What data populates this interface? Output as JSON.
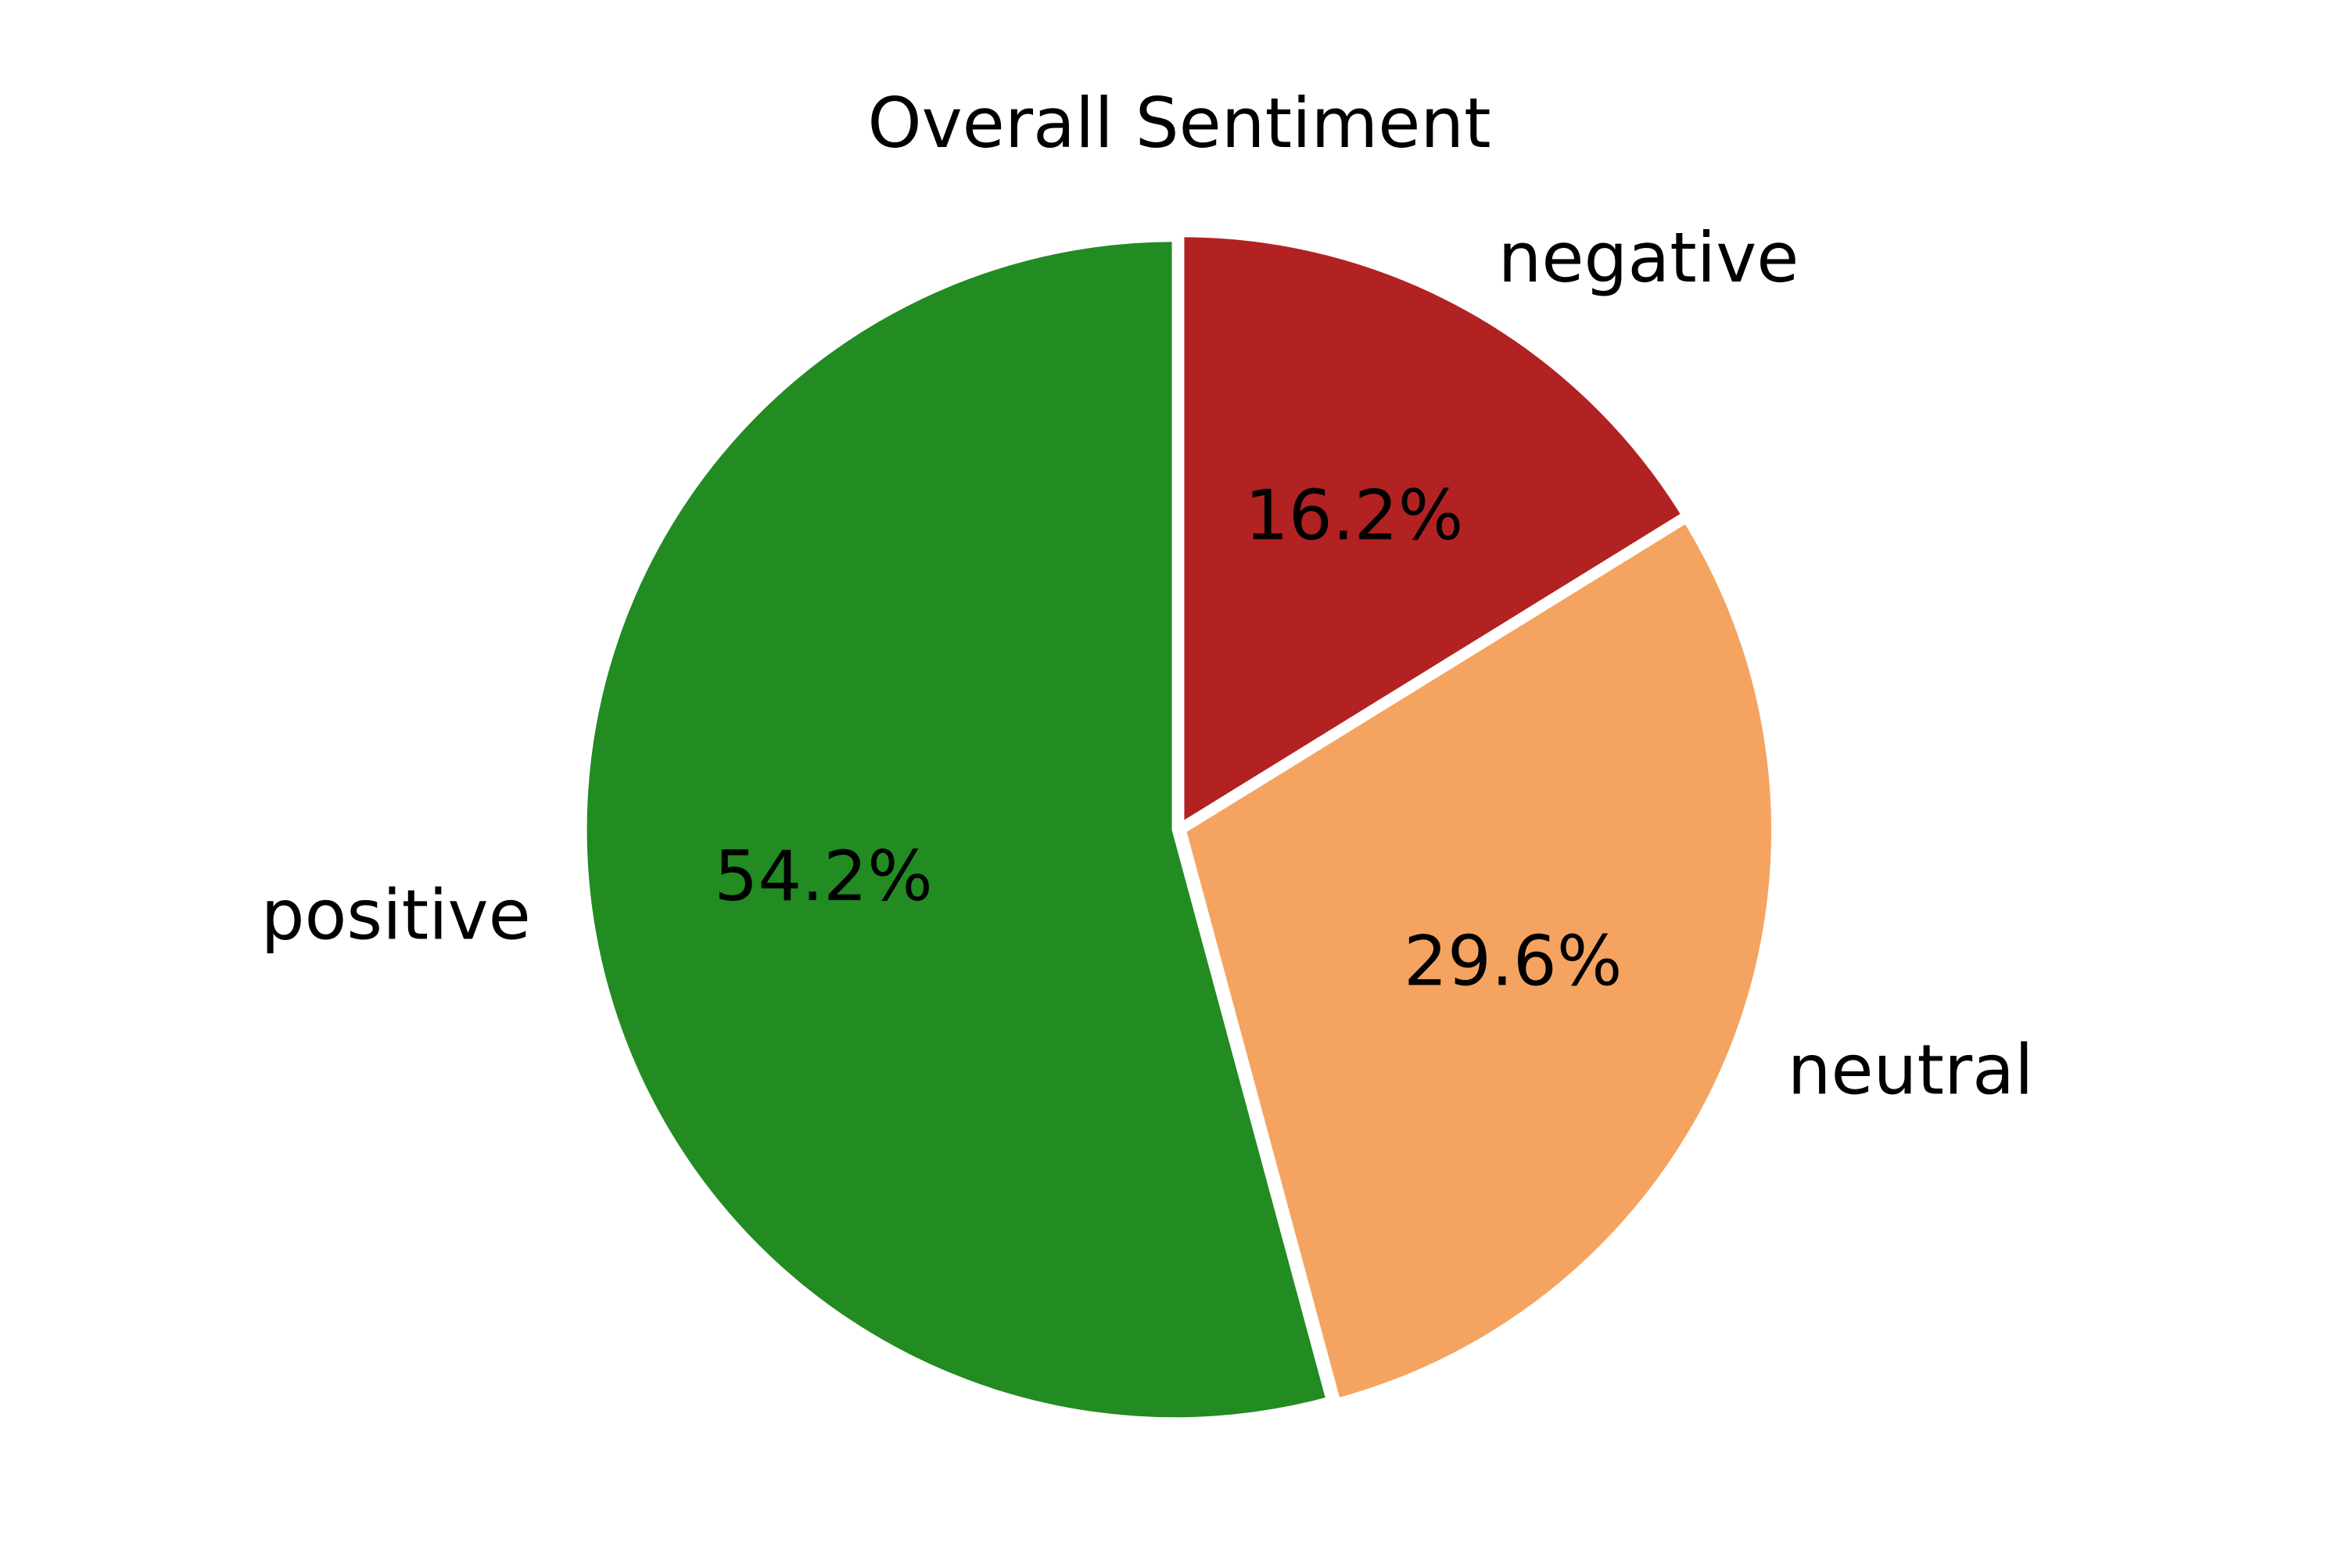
{
  "chart_data": {
    "type": "pie",
    "title": "Overall Sentiment",
    "categories": [
      "negative",
      "neutral",
      "positive"
    ],
    "values": [
      16.2,
      29.6,
      54.2
    ],
    "value_labels": [
      "16.2%",
      "29.6%",
      "54.2%"
    ],
    "colors": [
      "#b22222",
      "#f4a460",
      "#228b22"
    ],
    "start_angle": "top",
    "direction": "clockwise",
    "wedge_edge_color": "#ffffff",
    "legend": "none",
    "grid": false
  }
}
